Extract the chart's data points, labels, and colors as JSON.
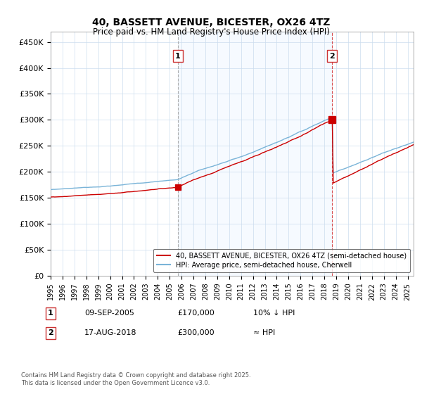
{
  "title": "40, BASSETT AVENUE, BICESTER, OX26 4TZ",
  "subtitle": "Price paid vs. HM Land Registry's House Price Index (HPI)",
  "ylabel_ticks": [
    "£0",
    "£50K",
    "£100K",
    "£150K",
    "£200K",
    "£250K",
    "£300K",
    "£350K",
    "£400K",
    "£450K"
  ],
  "ytick_values": [
    0,
    50000,
    100000,
    150000,
    200000,
    250000,
    300000,
    350000,
    400000,
    450000
  ],
  "ylim": [
    0,
    470000
  ],
  "xlim_start": 1995.0,
  "xlim_end": 2025.5,
  "hpi_color": "#7ab4d8",
  "price_color": "#cc0000",
  "marker1_x": 2005.69,
  "marker1_y": 170000,
  "marker2_x": 2018.63,
  "marker2_y": 300000,
  "legend_entry1": "40, BASSETT AVENUE, BICESTER, OX26 4TZ (semi-detached house)",
  "legend_entry2": "HPI: Average price, semi-detached house, Cherwell",
  "annotation1_date": "09-SEP-2005",
  "annotation1_price": "£170,000",
  "annotation1_hpi": "10% ↓ HPI",
  "annotation2_date": "17-AUG-2018",
  "annotation2_price": "£300,000",
  "annotation2_hpi": "≈ HPI",
  "footer": "Contains HM Land Registry data © Crown copyright and database right 2025.\nThis data is licensed under the Open Government Licence v3.0.",
  "background_color": "#ffffff",
  "grid_color": "#ccddee",
  "shade_color": "#ddeeff"
}
